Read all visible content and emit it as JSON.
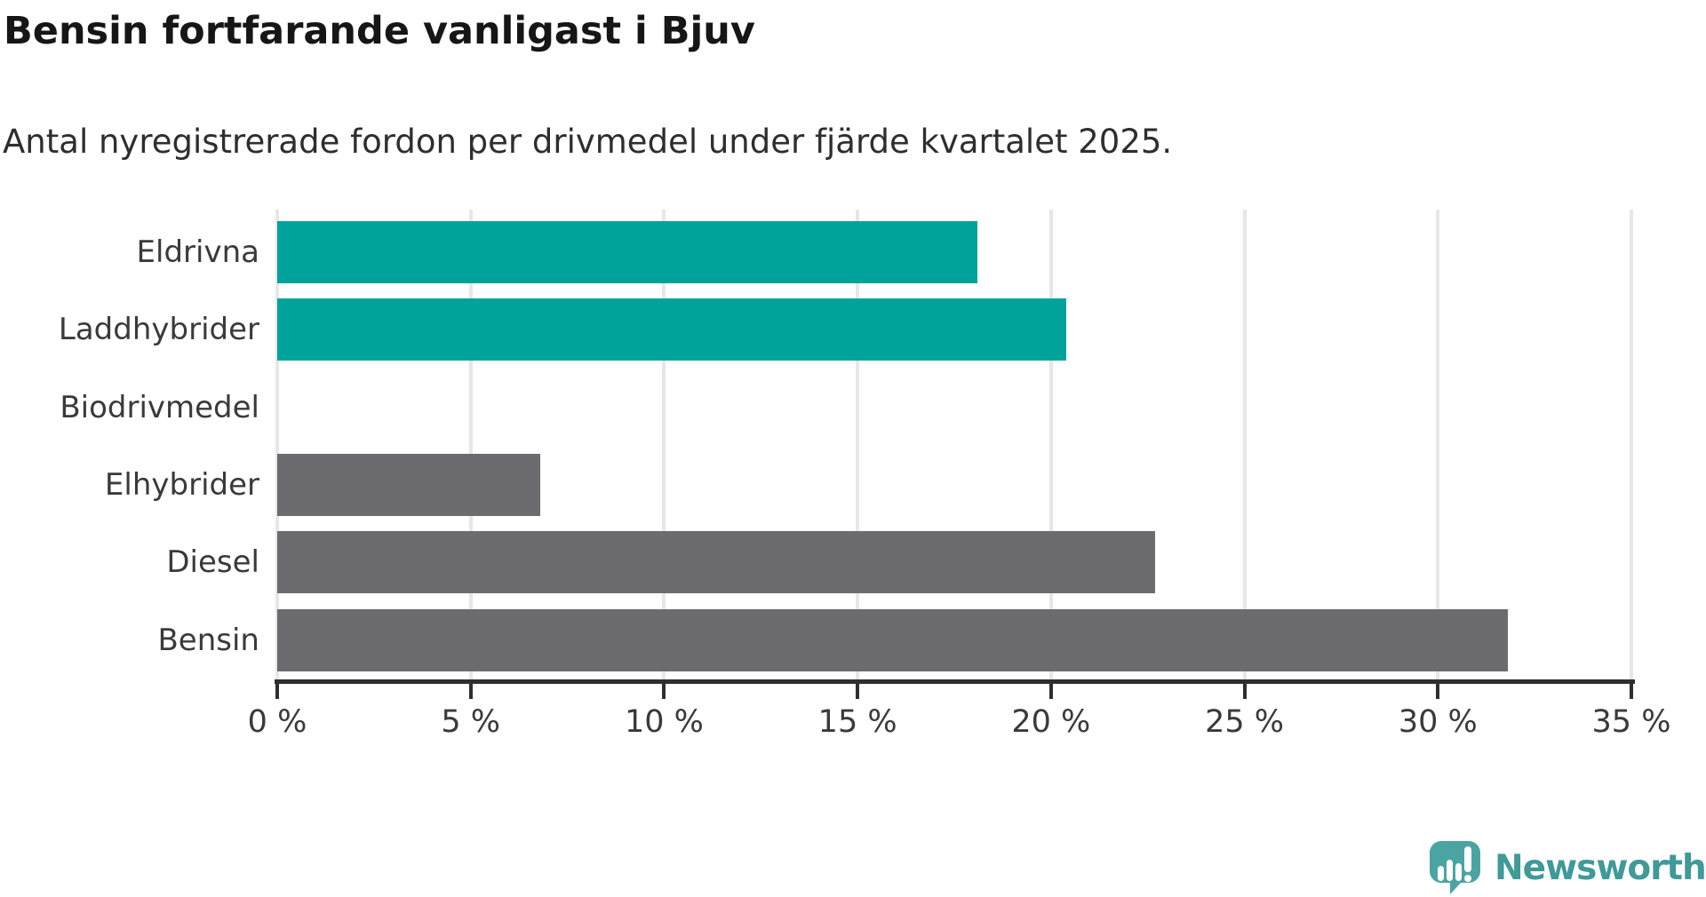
{
  "header": {
    "title": "Bensin fortfarande vanligast i Bjuv",
    "subtitle": "Antal nyregistrerade fordon per drivmedel under fjärde kvartalet 2025."
  },
  "footer": {
    "logo_text": "Newsworthy"
  },
  "colors": {
    "teal_bar": "#00a39b",
    "gray_bar": "#6b6b70",
    "gridline": "#e7e7e7",
    "axis": "#2e2e2e",
    "label_text": "#3a3a3a",
    "title_text": "#161616",
    "logo_teal": "#4aa5a2",
    "logo_text_teal": "#3f9a98"
  },
  "chart_data": {
    "type": "bar",
    "orientation": "horizontal",
    "title": "Bensin fortfarande vanligast i Bjuv",
    "subtitle": "Antal nyregistrerade fordon per drivmedel under fjärde kvartalet 2025.",
    "categories": [
      "Eldrivna",
      "Laddhybrider",
      "Biodrivmedel",
      "Elhybrider",
      "Diesel",
      "Bensin"
    ],
    "values": [
      18.1,
      20.4,
      0,
      6.8,
      22.7,
      31.8
    ],
    "bar_colors": [
      "#00a39b",
      "#00a39b",
      "#00a39b",
      "#6b6b70",
      "#6b6b70",
      "#6b6b70"
    ],
    "xlabel": "",
    "ylabel": "",
    "xlim": [
      0,
      35
    ],
    "x_ticks": [
      0,
      5,
      10,
      15,
      20,
      25,
      30,
      35
    ],
    "x_tick_labels": [
      "0 %",
      "5 %",
      "10 %",
      "15 %",
      "20 %",
      "25 %",
      "30 %",
      "35 %"
    ],
    "grid": "vertical",
    "legend": "none",
    "unit": "percent"
  }
}
